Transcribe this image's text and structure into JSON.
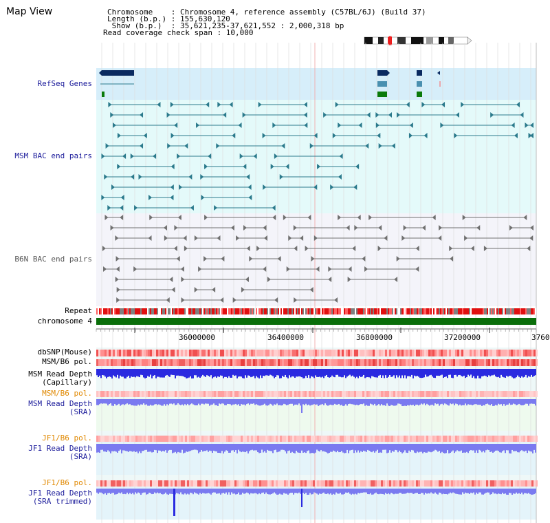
{
  "header": {
    "title": "Map View",
    "info_lines": [
      "Chromosome    : Chromosome 4, reference assembly (C57BL/6J) (Build 37)",
      "Length (b.p.) : 155,630,120",
      " Show (b.p.)  : 35,621,235-37,621,552 : 2,000,318 bp",
      "Read coverage check span : 10,000"
    ]
  },
  "tracks": {
    "refseq": "RefSeq Genes",
    "msm_bac": "MSM BAC end pairs",
    "b6n_bac": "B6N BAC end pairs",
    "repeat": "Repeat",
    "chromosome": "chromosome 4",
    "dbsnp": "dbSNP(Mouse)",
    "msm_b6_pol_1": "MSM/B6 pol.",
    "msm_depth_cap": [
      "MSM Read Depth",
      "(Capillary)"
    ],
    "msm_b6_pol_2": "MSM/B6 pol.",
    "msm_depth_sra": [
      "MSM Read Depth",
      "(SRA)"
    ],
    "jf1_b6_pol_1": "JF1/B6 pol.",
    "jf1_depth_sra": [
      "JF1 Read Depth",
      "(SRA)"
    ],
    "jf1_b6_pol_2": "JF1/B6 pol.",
    "jf1_depth_trim": [
      "JF1 Read Depth",
      "(SRA trimmed)"
    ]
  },
  "axis": {
    "ticks": [
      "36000000",
      "36400000",
      "36800000",
      "37200000",
      "3760"
    ]
  },
  "colors": {
    "refseq_bg": "#d6eefa",
    "msm_bg": "#e4fafa",
    "b6n_bg": "#f4f4fa",
    "chrom": "#0a6e0a",
    "msm_feature": "#2b7a8c",
    "b6n_feature": "#707070",
    "depth_blue": "#2a2ae0",
    "depth_light": "#7a7af0"
  }
}
